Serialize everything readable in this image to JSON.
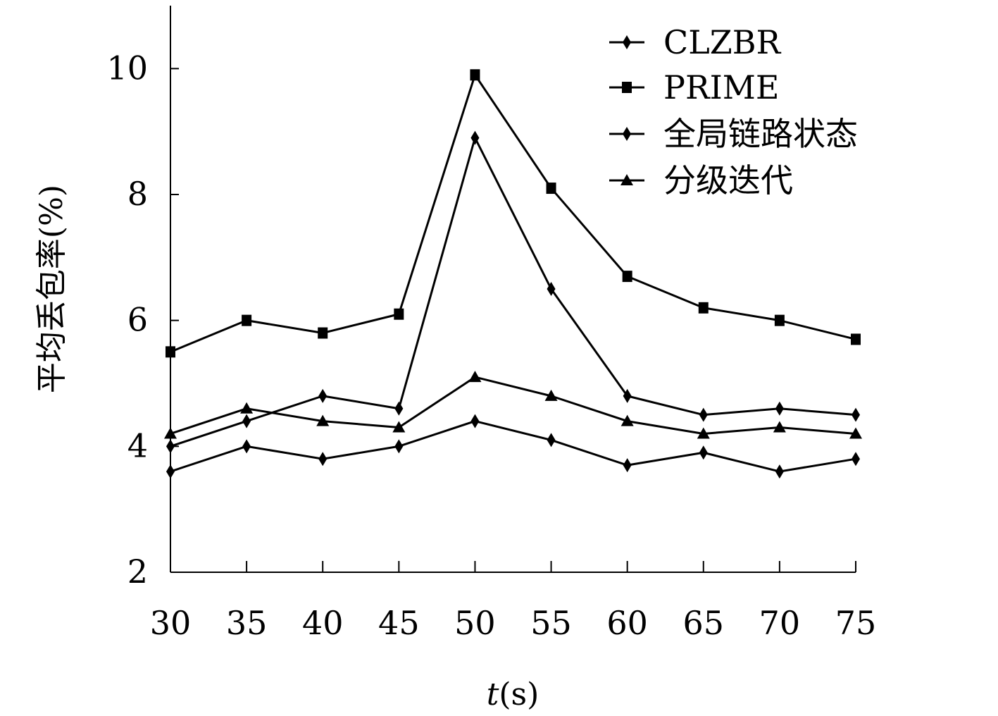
{
  "chart_data": {
    "type": "line",
    "title": "",
    "xlabel_var": "t",
    "xlabel_unit": "(s)",
    "ylabel": "平均丢包率(%)",
    "x": [
      30,
      35,
      40,
      45,
      50,
      55,
      60,
      65,
      70,
      75
    ],
    "xlim": [
      30,
      75
    ],
    "ylim": [
      2,
      11
    ],
    "yticks": [
      2,
      4,
      6,
      8,
      10
    ],
    "grid": false,
    "legend_position": "top-right",
    "series": [
      {
        "name": "CLZBR",
        "marker": "diamond",
        "color": "#000000",
        "values": [
          3.6,
          4.0,
          3.8,
          4.0,
          4.4,
          4.1,
          3.7,
          3.9,
          3.6,
          3.8
        ]
      },
      {
        "name": "PRIME",
        "marker": "square",
        "color": "#000000",
        "values": [
          5.5,
          6.0,
          5.8,
          6.1,
          9.9,
          8.1,
          6.7,
          6.2,
          6.0,
          5.7
        ]
      },
      {
        "name": "全局链路状态",
        "marker": "diamond",
        "color": "#000000",
        "values": [
          4.0,
          4.4,
          4.8,
          4.6,
          8.9,
          6.5,
          4.8,
          4.5,
          4.6,
          4.5
        ]
      },
      {
        "name": "分级迭代",
        "marker": "triangle",
        "color": "#000000",
        "values": [
          4.2,
          4.6,
          4.4,
          4.3,
          5.1,
          4.8,
          4.4,
          4.2,
          4.3,
          4.2
        ]
      }
    ]
  }
}
